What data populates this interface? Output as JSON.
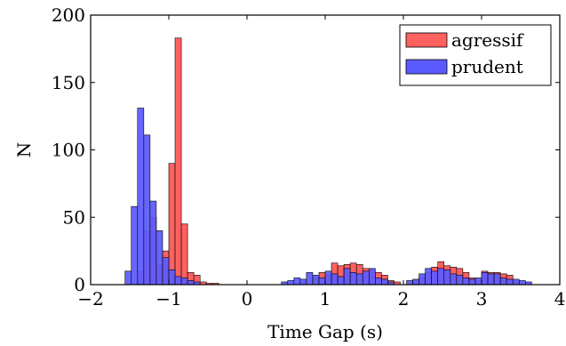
{
  "chart_data": {
    "type": "bar",
    "xlabel": "Time Gap (s)",
    "ylabel": "N",
    "xlim": [
      -2,
      4
    ],
    "ylim": [
      0,
      200
    ],
    "xticks": [
      -2,
      -1,
      0,
      1,
      2,
      3,
      4
    ],
    "xtick_labels": [
      "−2",
      "−1",
      "0",
      "1",
      "2",
      "3",
      "4"
    ],
    "yticks": [
      0,
      50,
      100,
      150,
      200
    ],
    "ytick_labels": [
      "0",
      "50",
      "100",
      "150",
      "200"
    ],
    "bin_width": 0.08,
    "legend_position": "top-right",
    "grid": false,
    "series": [
      {
        "name": "agressif",
        "color": "#ff6060",
        "bins": [
          [
            -1.4,
            10
          ],
          [
            -1.32,
            40
          ],
          [
            -1.24,
            50
          ],
          [
            -1.16,
            15
          ],
          [
            -1.08,
            25
          ],
          [
            -1.0,
            90
          ],
          [
            -0.92,
            183
          ],
          [
            -0.84,
            45
          ],
          [
            -0.76,
            9
          ],
          [
            -0.68,
            7
          ],
          [
            -0.6,
            2
          ],
          [
            -0.52,
            1
          ],
          [
            -0.44,
            1
          ],
          [
            0.68,
            2
          ],
          [
            0.84,
            5
          ],
          [
            0.92,
            9
          ],
          [
            1.0,
            7
          ],
          [
            1.08,
            16
          ],
          [
            1.16,
            14
          ],
          [
            1.24,
            15
          ],
          [
            1.32,
            16
          ],
          [
            1.4,
            15
          ],
          [
            1.48,
            12
          ],
          [
            1.56,
            11
          ],
          [
            1.64,
            9
          ],
          [
            1.72,
            7
          ],
          [
            1.8,
            3
          ],
          [
            1.88,
            2
          ],
          [
            2.12,
            3
          ],
          [
            2.2,
            5
          ],
          [
            2.28,
            9
          ],
          [
            2.36,
            13
          ],
          [
            2.44,
            17
          ],
          [
            2.52,
            14
          ],
          [
            2.6,
            13
          ],
          [
            2.68,
            12
          ],
          [
            2.76,
            9
          ],
          [
            2.84,
            5
          ],
          [
            2.92,
            3
          ],
          [
            3.0,
            10
          ],
          [
            3.08,
            9
          ],
          [
            3.16,
            9
          ],
          [
            3.24,
            8
          ],
          [
            3.32,
            7
          ],
          [
            3.4,
            2
          ]
        ]
      },
      {
        "name": "prudent",
        "color": "#5a5aff",
        "bins": [
          [
            -1.56,
            10
          ],
          [
            -1.48,
            58
          ],
          [
            -1.4,
            131
          ],
          [
            -1.32,
            111
          ],
          [
            -1.24,
            62
          ],
          [
            -1.16,
            40
          ],
          [
            -1.08,
            20
          ],
          [
            -1.0,
            11
          ],
          [
            -0.92,
            6
          ],
          [
            -0.84,
            5
          ],
          [
            -0.76,
            3
          ],
          [
            -0.68,
            2
          ],
          [
            0.44,
            2
          ],
          [
            0.52,
            3
          ],
          [
            0.6,
            5
          ],
          [
            0.68,
            4
          ],
          [
            0.76,
            9
          ],
          [
            0.84,
            7
          ],
          [
            0.92,
            5
          ],
          [
            1.0,
            10
          ],
          [
            1.08,
            8
          ],
          [
            1.16,
            6
          ],
          [
            1.24,
            12
          ],
          [
            1.32,
            9
          ],
          [
            1.4,
            8
          ],
          [
            1.48,
            10
          ],
          [
            1.56,
            12
          ],
          [
            1.64,
            5
          ],
          [
            1.72,
            4
          ],
          [
            1.8,
            2
          ],
          [
            2.04,
            3
          ],
          [
            2.12,
            4
          ],
          [
            2.2,
            8
          ],
          [
            2.28,
            12
          ],
          [
            2.36,
            10
          ],
          [
            2.44,
            12
          ],
          [
            2.52,
            11
          ],
          [
            2.6,
            8
          ],
          [
            2.68,
            7
          ],
          [
            2.76,
            5
          ],
          [
            2.84,
            4
          ],
          [
            2.92,
            5
          ],
          [
            3.0,
            9
          ],
          [
            3.08,
            8
          ],
          [
            3.16,
            8
          ],
          [
            3.24,
            5
          ],
          [
            3.32,
            4
          ],
          [
            3.4,
            4
          ],
          [
            3.48,
            3
          ],
          [
            3.56,
            2
          ]
        ]
      }
    ]
  }
}
